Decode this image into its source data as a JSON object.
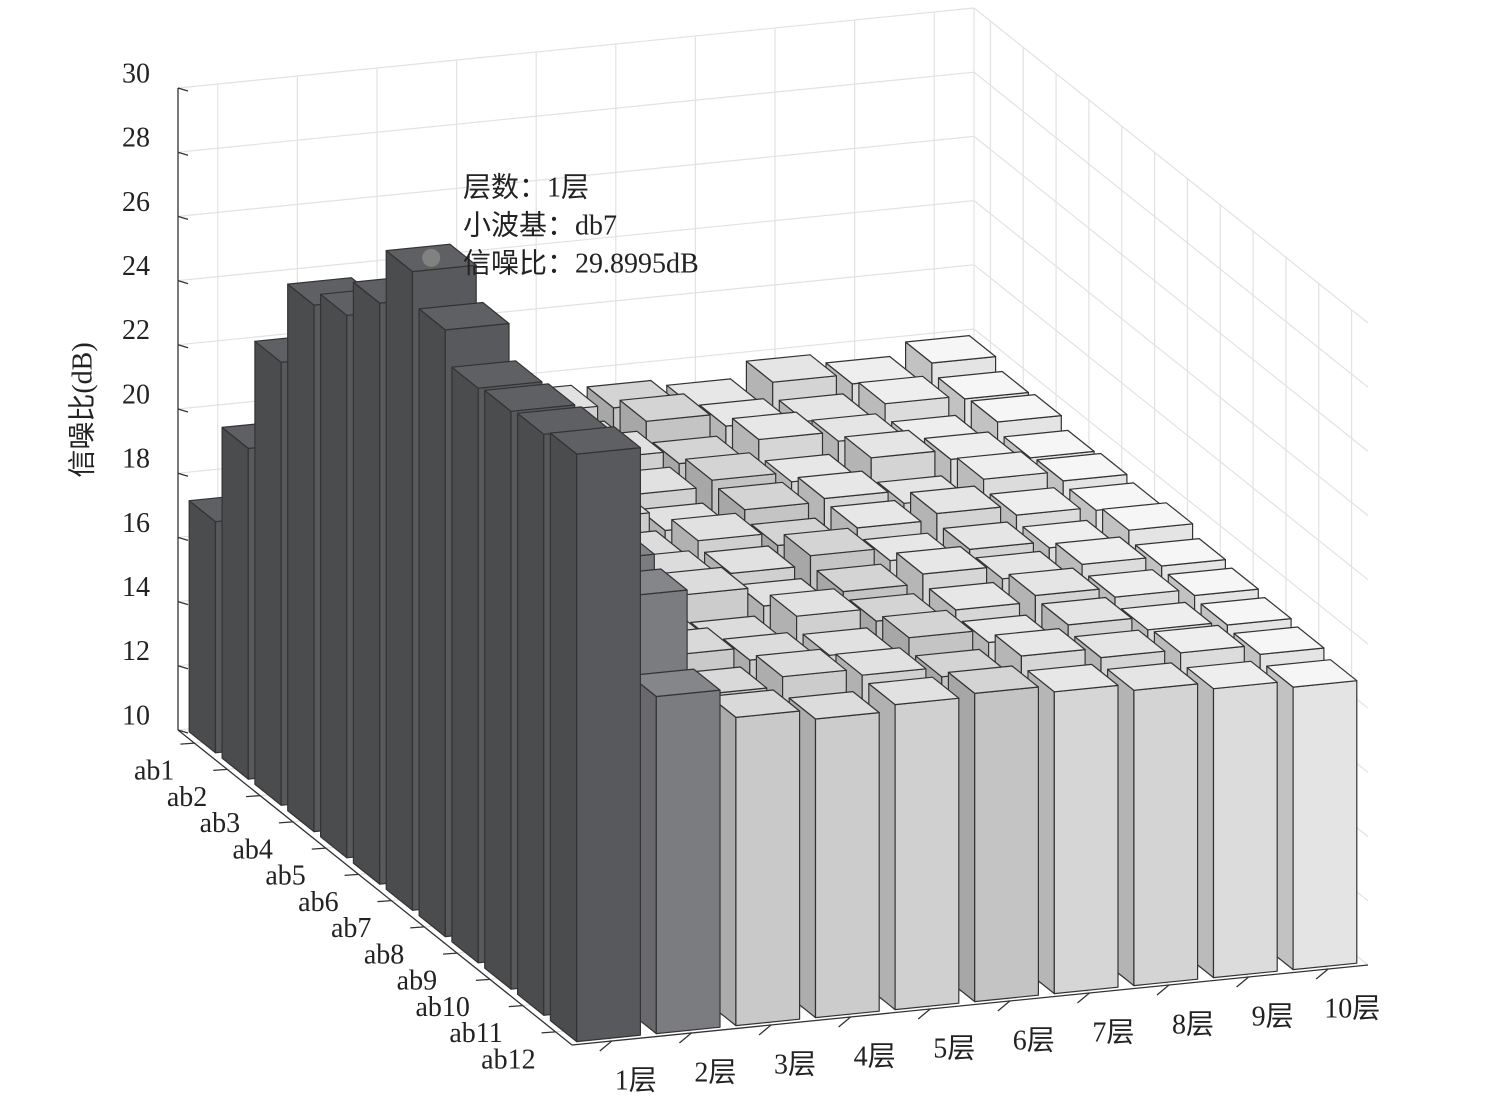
{
  "chart_data": {
    "type": "bar3d",
    "zlabel": "信噪比(dB)",
    "categories": [
      "1层",
      "2层",
      "3层",
      "4层",
      "5层",
      "6层",
      "7层",
      "8层",
      "9层",
      "10层"
    ],
    "depth_categories": [
      "ab1",
      "ab2",
      "ab3",
      "ab4",
      "ab5",
      "ab6",
      "ab7",
      "ab8",
      "ab9",
      "ab10",
      "ab11",
      "ab12"
    ],
    "colors": [
      "#58595c",
      "#7b7c80",
      "#c9c9c9",
      "#cccccc",
      "#d0d0d0",
      "#c4c4c4",
      "#d6d6d6",
      "#d4d4d4",
      "#dcdcdc",
      "#e4e4e4"
    ],
    "values": [
      [
        17.2,
        20.3,
        23.8,
        26.4,
        26.9,
        28.1,
        29.8995,
        28.9,
        27.9,
        28.0,
        28.1,
        28.3
      ],
      [
        17.5,
        18.2,
        18.8,
        19.4,
        20.0,
        20.6,
        21.3,
        21.9,
        22.6,
        23.1,
        22.8,
        20.5
      ],
      [
        19.4,
        19.6,
        19.2,
        19.8,
        19.5,
        19.9,
        19.3,
        19.7,
        19.6,
        19.9,
        19.5,
        19.6
      ],
      [
        19.2,
        19.7,
        19.5,
        19.3,
        19.8,
        19.4,
        19.6,
        19.9,
        19.2,
        19.5,
        19.8,
        19.3
      ],
      [
        19.6,
        19.3,
        19.8,
        19.5,
        19.2,
        19.7,
        19.5,
        19.3,
        19.8,
        19.4,
        19.6,
        19.5
      ],
      [
        19.5,
        19.9,
        19.4,
        19.7,
        19.6,
        19.3,
        19.8,
        19.5,
        19.4,
        19.7,
        19.3,
        19.6
      ],
      [
        19.3,
        19.5,
        19.9,
        19.4,
        19.7,
        19.6,
        19.4,
        19.8,
        19.5,
        19.3,
        19.7,
        19.4
      ],
      [
        19.8,
        19.4,
        19.6,
        19.9,
        19.3,
        19.8,
        19.5,
        19.4,
        19.7,
        19.6,
        19.4,
        19.2
      ],
      [
        19.5,
        19.7,
        19.3,
        19.6,
        19.8,
        19.5,
        19.3,
        19.6,
        19.4,
        19.2,
        19.3,
        19.0
      ],
      [
        19.9,
        19.6,
        19.7,
        19.4,
        19.5,
        19.4,
        19.6,
        19.3,
        19.2,
        19.1,
        19.0,
        18.8
      ]
    ],
    "zlim": [
      10,
      30
    ],
    "zticks": [
      10,
      12,
      14,
      16,
      18,
      20,
      22,
      24,
      26,
      28,
      30
    ],
    "grid": true,
    "annotation": {
      "layer": 0,
      "depth": 6,
      "lines": [
        "层数：1层",
        "小波基：db7",
        "信噪比：29.8995dB"
      ]
    }
  }
}
